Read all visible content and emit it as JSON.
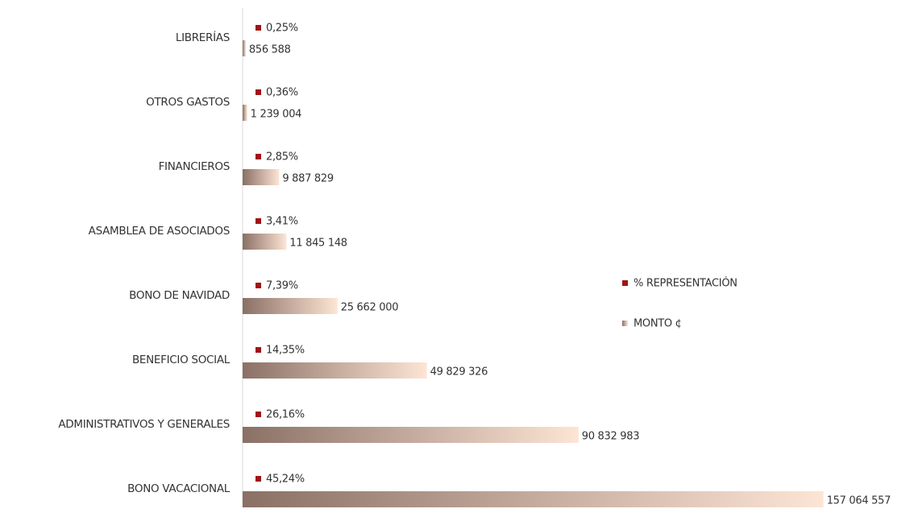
{
  "chart_data": {
    "type": "bar",
    "orientation": "horizontal",
    "categories": [
      "LIBRERÍAS",
      "OTROS GASTOS",
      "FINANCIEROS",
      "ASAMBLEA DE ASOCIADOS",
      "BONO DE NAVIDAD",
      "BENEFICIO SOCIAL",
      "ADMINISTRATIVOS Y GENERALES",
      "BONO VACACIONAL"
    ],
    "series": [
      {
        "name": "% REPRESENTACIÓN",
        "color": "#a01414",
        "values": [
          0.25,
          0.36,
          2.85,
          3.41,
          7.39,
          14.35,
          26.16,
          45.24
        ],
        "value_labels": [
          "0,25%",
          "0,36%",
          "2,85%",
          "3,41%",
          "7,39%",
          "14,35%",
          "26,16%",
          "45,24%"
        ]
      },
      {
        "name": "MONTO ¢",
        "color": "#fde5d5",
        "gradient_from": "#8a7065",
        "values": [
          856588,
          1239004,
          9887829,
          11845148,
          25662000,
          49829326,
          90832983,
          157064557
        ],
        "value_labels": [
          "856 588",
          "1 239 004",
          "9 887 829",
          "11 845 148",
          "25 662 000",
          "49 829 326",
          "90 832 983",
          "157 064 557"
        ]
      }
    ],
    "xlim": [
      0,
      175000000
    ],
    "legend": "right"
  }
}
